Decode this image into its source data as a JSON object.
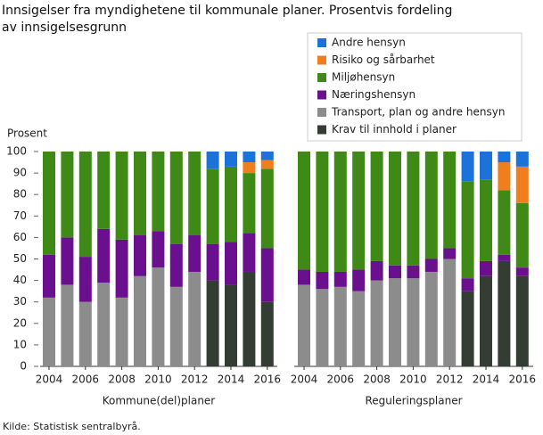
{
  "chart_data": {
    "type": "bar",
    "stacked": true,
    "title": "Innsigelser fra myndighetene til kommunale planer. Prosentvis fordeling av innsigelsesgrunn",
    "ylabel": "Prosent",
    "ylim": [
      0,
      100
    ],
    "yticks": [
      0,
      10,
      20,
      30,
      40,
      50,
      60,
      70,
      80,
      90,
      100
    ],
    "grid": false,
    "panels": [
      {
        "xlabel": "Kommune(del)planer",
        "categories": [
          "2004",
          null,
          "2006",
          null,
          "2008",
          null,
          "2010",
          null,
          "2012",
          null,
          "2014",
          null,
          "2016"
        ]
      },
      {
        "xlabel": "Reguleringsplaner",
        "categories": [
          "2004",
          null,
          "2006",
          null,
          "2008",
          null,
          "2010",
          null,
          "2012",
          null,
          "2014",
          null,
          "2016"
        ]
      }
    ],
    "series": [
      {
        "name": "Krav til innhold i planer",
        "color": "#333d33",
        "values": [
          [
            0,
            0,
            0,
            0,
            0,
            0,
            0,
            0,
            0,
            40,
            38,
            44,
            30
          ],
          [
            0,
            0,
            0,
            0,
            0,
            0,
            0,
            0,
            0,
            35,
            42,
            49,
            42
          ]
        ]
      },
      {
        "name": "Transport, plan og andre hensyn",
        "color": "#8c8c8c",
        "values": [
          [
            32,
            38,
            30,
            39,
            32,
            42,
            46,
            37,
            44,
            0,
            0,
            0,
            0
          ],
          [
            38,
            36,
            37,
            35,
            40,
            41,
            41,
            44,
            50,
            0,
            0,
            0,
            0
          ]
        ]
      },
      {
        "name": "Næringshensyn",
        "color": "#6a0f8e",
        "values": [
          [
            20,
            22,
            21,
            25,
            27,
            19,
            17,
            20,
            17,
            17,
            20,
            18,
            25
          ],
          [
            7,
            8,
            7,
            10,
            9,
            6,
            6,
            6,
            5,
            6,
            7,
            3,
            4
          ]
        ]
      },
      {
        "name": "Miljøhensyn",
        "color": "#3f8a17",
        "values": [
          [
            48,
            40,
            49,
            36,
            41,
            39,
            37,
            43,
            39,
            35,
            35,
            28,
            37
          ],
          [
            55,
            56,
            56,
            55,
            51,
            53,
            53,
            50,
            45,
            45,
            38,
            30,
            30
          ]
        ]
      },
      {
        "name": "Risiko og sårbarhet",
        "color": "#f07e1d",
        "values": [
          [
            0,
            0,
            0,
            0,
            0,
            0,
            0,
            0,
            0,
            0,
            0,
            5,
            4
          ],
          [
            0,
            0,
            0,
            0,
            0,
            0,
            0,
            0,
            0,
            0,
            0,
            13,
            17
          ]
        ]
      },
      {
        "name": "Andre hensyn",
        "color": "#1b72d8",
        "values": [
          [
            0,
            0,
            0,
            0,
            0,
            0,
            0,
            0,
            0,
            8,
            7,
            5,
            4
          ],
          [
            0,
            0,
            0,
            0,
            0,
            0,
            0,
            0,
            0,
            14,
            13,
            5,
            7
          ]
        ]
      }
    ],
    "source": "Kilde: Statistisk sentralbyrå."
  }
}
